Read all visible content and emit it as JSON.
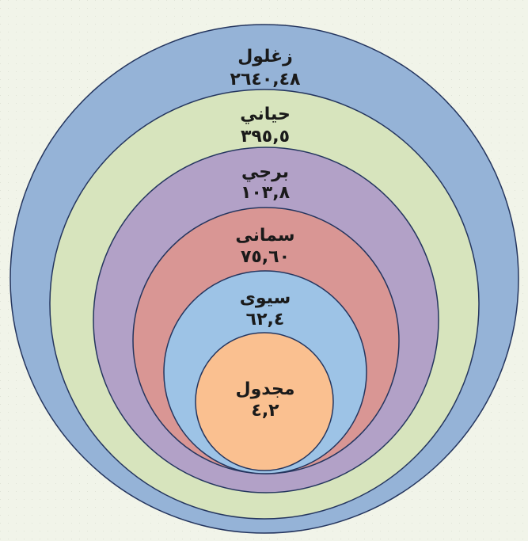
{
  "nodes": [
    {
      "label": "زغلول",
      "value": "٢٦٤٠,٤٨"
    },
    {
      "label": "حياني",
      "value": "٣٩٥,٥"
    },
    {
      "label": "برجي",
      "value": "١٠٣,٨"
    },
    {
      "label": "سمانى",
      "value": "٧٥,٦٠"
    },
    {
      "label": "سيوى",
      "value": "٦٢,٤"
    },
    {
      "label": "مجدول",
      "value": "٤,٢"
    }
  ]
}
